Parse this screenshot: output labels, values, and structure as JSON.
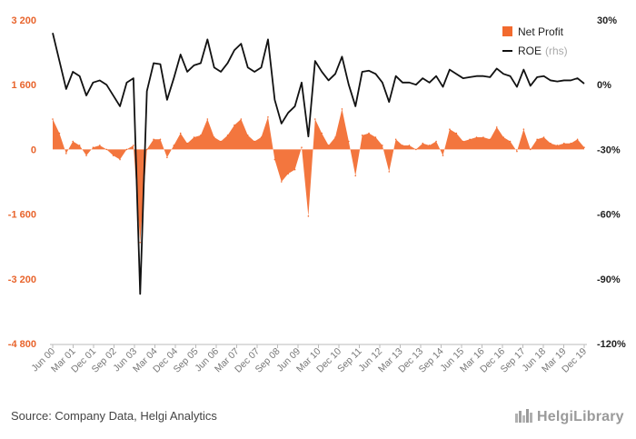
{
  "chart_data": {
    "type": "area",
    "title": "",
    "xlabel": "",
    "ylabel": "",
    "ylim": [
      -4800,
      3200
    ],
    "y2lim": [
      -120,
      30
    ],
    "y_ticks": [
      "3 200",
      "1 600",
      "0",
      "-1 600",
      "-3 200",
      "-4 800"
    ],
    "y2_ticks": [
      "30%",
      "0%",
      "-30%",
      "-60%",
      "-90%",
      "-120%"
    ],
    "x_tick_labels": [
      "Jun 00",
      "Mar 01",
      "Dec 01",
      "Sep 02",
      "Jun 03",
      "Mar 04",
      "Dec 04",
      "Sep 05",
      "Jun 06",
      "Mar 07",
      "Dec 07",
      "Sep 08",
      "Jun 09",
      "Mar 10",
      "Dec 10",
      "Sep 11",
      "Jun 12",
      "Mar 13",
      "Dec 13",
      "Sep 14",
      "Jun 15",
      "Mar 16",
      "Dec 16",
      "Sep 17",
      "Jun 18",
      "Mar 19",
      "Dec 19"
    ],
    "legend_position": "top-right",
    "grid": false,
    "series": [
      {
        "name": "Net Profit",
        "kind": "area",
        "axis": "left",
        "color": "#f26a2e",
        "values": [
          750,
          400,
          -100,
          200,
          100,
          -150,
          50,
          100,
          0,
          -150,
          -250,
          0,
          100,
          -2300,
          0,
          250,
          250,
          -200,
          100,
          400,
          150,
          300,
          350,
          750,
          300,
          200,
          350,
          600,
          750,
          350,
          200,
          300,
          800,
          -250,
          -800,
          -600,
          -500,
          50,
          -1650,
          750,
          400,
          100,
          300,
          1000,
          200,
          -650,
          350,
          400,
          300,
          100,
          -550,
          250,
          100,
          100,
          0,
          150,
          100,
          200,
          -150,
          500,
          400,
          200,
          250,
          300,
          300,
          250,
          550,
          300,
          200,
          -50,
          500,
          0,
          250,
          300,
          150,
          100,
          150,
          150,
          250,
          50
        ]
      },
      {
        "name": "ROE",
        "name_note": "(rhs)",
        "kind": "line",
        "axis": "right",
        "color": "#111111",
        "values": [
          24,
          11,
          -2,
          6,
          4,
          -5,
          1,
          2,
          0,
          -5,
          -10,
          1,
          3,
          -97,
          -3,
          10,
          9.5,
          -7,
          3,
          14,
          6,
          9,
          10,
          21,
          8,
          6,
          10,
          16,
          19,
          8,
          6,
          8,
          21,
          -7,
          -18,
          -13,
          -10,
          1,
          -24,
          11,
          6,
          2,
          5,
          13,
          0,
          -10,
          6,
          6.5,
          5,
          1,
          -8,
          4,
          1,
          1,
          0,
          3,
          1,
          4,
          -1,
          7,
          5,
          3,
          3.5,
          4,
          4,
          3.5,
          7.5,
          5,
          4,
          -1,
          7,
          -0.5,
          3.5,
          4,
          2,
          1.5,
          2,
          2,
          3,
          0.5
        ]
      }
    ]
  },
  "source_text": "Source: Company Data, Helgi Analytics",
  "logo_text": "HelgiLibrary"
}
